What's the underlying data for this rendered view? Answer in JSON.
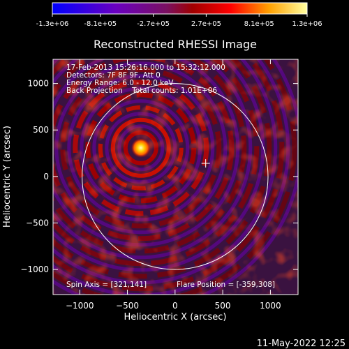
{
  "chart_data": {
    "type": "heatmap",
    "title": "Reconstructed RHESSI Image",
    "xlabel": "Heliocentric X (arcsec)",
    "ylabel": "Heliocentric Y (arcsec)",
    "xlim": [
      -1280,
      1290
    ],
    "ylim": [
      -1270,
      1260
    ],
    "xticks": [
      -1000,
      -500,
      0,
      500,
      1000
    ],
    "xtick_labels": [
      "−1000",
      "−500",
      "0",
      "500",
      "1000"
    ],
    "yticks": [
      -1000,
      -500,
      0,
      500,
      1000
    ],
    "ytick_labels": [
      "−1000",
      "−500",
      "0",
      "500",
      "1000"
    ],
    "colorbar": {
      "range": [
        -1300000,
        1300000
      ],
      "tick_values": [
        -1300000,
        -810000,
        -270000,
        270000,
        810000,
        1300000
      ],
      "tick_labels": [
        "-1.3e+06",
        "-8.1e+05",
        "-2.7e+05",
        "2.7e+05",
        "8.1e+05",
        "1.3e+06"
      ],
      "colors": [
        "#0000ff",
        "#6a00c0",
        "#8c3080",
        "#ff0000",
        "#ffa000",
        "#ffff80"
      ]
    },
    "annotations": [
      "17-Feb-2013 15:26:16.000 to 15:32:12.000",
      "Detectors: 7F 8F 9F, Att 0",
      "Energy Range: 6.0 - 12.0 keV",
      "Back Projection    Total counts: 1.01E+06"
    ],
    "spin_axis_label": "Spin Axis = [321,141]",
    "flare_position_label": "Flare Position = [-359,308]",
    "spin_axis": [
      321,
      141
    ],
    "flare_position": [
      -359,
      308
    ],
    "solar_limb_radius": 975,
    "grid": false
  },
  "footer": {
    "timestamp": "11-May-2022 12:25"
  }
}
